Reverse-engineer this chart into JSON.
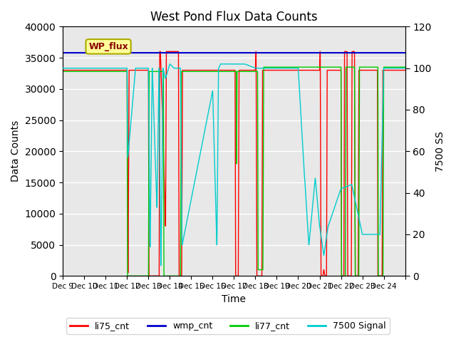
{
  "title": "West Pond Flux Data Counts",
  "xlabel": "Time",
  "ylabel_left": "Data Counts",
  "ylabel_right": "7500 SS",
  "xlim": [
    0,
    16
  ],
  "ylim_left": [
    0,
    40000
  ],
  "ylim_right": [
    0,
    120
  ],
  "xtick_positions": [
    0,
    1,
    2,
    3,
    4,
    5,
    6,
    7,
    8,
    9,
    10,
    11,
    12,
    13,
    14,
    15,
    16
  ],
  "xtick_labels": [
    "Dec 9",
    "Dec 10",
    "Dec 11",
    "Dec 12",
    "Dec 13",
    "Dec 14",
    "Dec 15",
    "Dec 16",
    "Dec 17",
    "Dec 18",
    "Dec 19",
    "Dec 20",
    "Dec 21",
    "Dec 22",
    "Dec 23",
    "Dec 24",
    ""
  ],
  "ytick_left": [
    0,
    5000,
    10000,
    15000,
    20000,
    25000,
    30000,
    35000,
    40000
  ],
  "ytick_right": [
    0,
    20,
    40,
    60,
    80,
    100,
    120
  ],
  "background_color": "#e8e8e8",
  "grid_color": "#ffffff",
  "annotation_label": "WP_flux",
  "annotation_bg": "#ffff99",
  "annotation_border": "#aaaa00",
  "colors": {
    "li75_cnt": "#ff0000",
    "wmp_cnt": "#0000cc",
    "li77_cnt": "#00cc00",
    "7500_signal": "#00cccc"
  },
  "legend_labels": [
    "li75_cnt",
    "wmp_cnt",
    "li77_cnt",
    "7500 Signal"
  ]
}
